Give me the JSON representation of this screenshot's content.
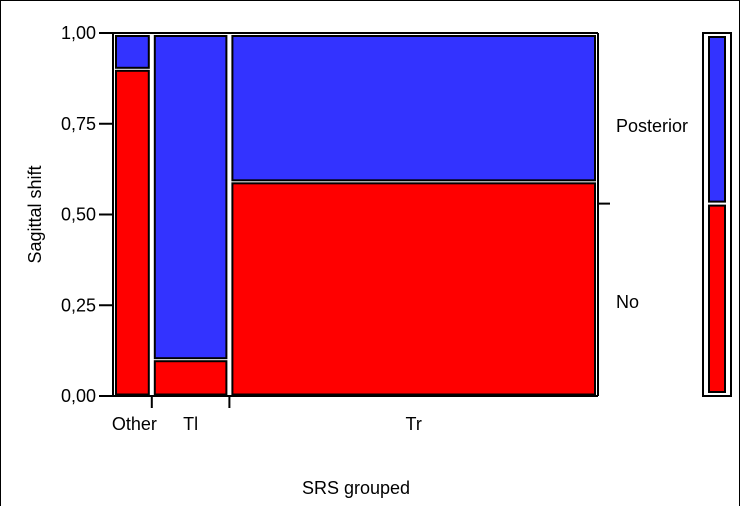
{
  "chart_data": {
    "type": "mosaic",
    "xlabel": "SRS grouped",
    "ylabel": "Sagittal shift",
    "ylim": [
      0,
      1
    ],
    "y_ticks": [
      "0,00",
      "0,25",
      "0,50",
      "0,75",
      "1,00"
    ],
    "y_tick_values": [
      0,
      0.25,
      0.5,
      0.75,
      1
    ],
    "categories": [
      "Other",
      "Tl",
      "Tr"
    ],
    "category_widths": [
      0.08,
      0.16,
      0.76
    ],
    "series": [
      {
        "name": "No",
        "values": [
          0.9,
          0.1,
          0.59
        ]
      },
      {
        "name": "Posterior",
        "values": [
          0.1,
          0.9,
          0.41
        ]
      }
    ],
    "overall": {
      "No": 0.53,
      "Posterior": 0.47
    },
    "colors": {
      "No": "#ff0000",
      "Posterior": "#3333ff",
      "border": "#000000",
      "gap": "#ffffff"
    },
    "legend_placement": "right",
    "grid": false
  }
}
